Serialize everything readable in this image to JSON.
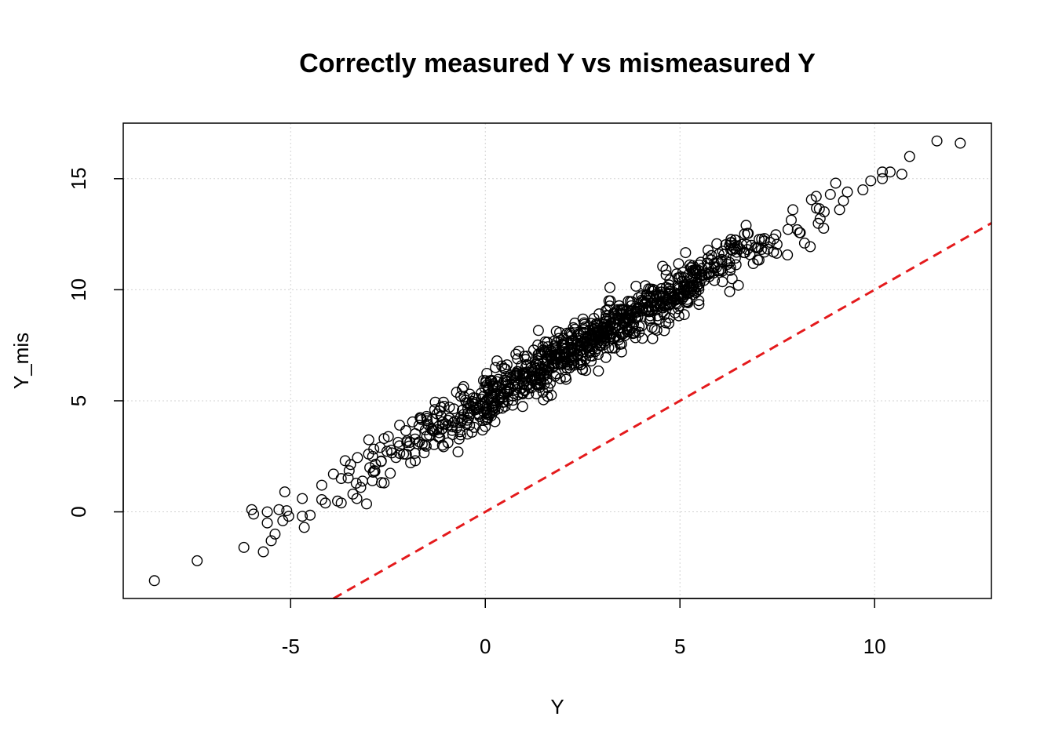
{
  "chart_data": {
    "type": "scatter",
    "title": "Correctly measured Y vs mismeasured Y",
    "xlabel": "Y",
    "ylabel": "Y_mis",
    "xlim": [
      -9.3,
      13.0
    ],
    "ylim": [
      -3.9,
      17.5
    ],
    "xticks": [
      -5,
      0,
      5,
      10
    ],
    "yticks": [
      0,
      5,
      10,
      15
    ],
    "xtick_labels": [
      "-5",
      "0",
      "5",
      "10"
    ],
    "ytick_labels": [
      "0",
      "5",
      "10",
      "15"
    ],
    "grid": true,
    "grid_color": "#d3d3d3",
    "point_color": "#000000",
    "marker": "open-circle",
    "reference_line": {
      "type": "identity",
      "slope": 1,
      "intercept": 0,
      "color": "#e41a1c",
      "style": "dashed"
    },
    "point_count_estimate": 1000,
    "trend": {
      "slope": 1.0,
      "intercept": 5.0,
      "residual_sd": 0.55
    },
    "points": [
      {
        "x": -8.5,
        "y": -3.1
      },
      {
        "x": -7.4,
        "y": -2.2
      },
      {
        "x": -6.2,
        "y": -1.6
      },
      {
        "x": -6.0,
        "y": 0.1
      },
      {
        "x": -5.95,
        "y": -0.1
      },
      {
        "x": -5.7,
        "y": -1.8
      },
      {
        "x": -5.5,
        "y": -1.3
      },
      {
        "x": -5.6,
        "y": 0.0
      },
      {
        "x": -5.6,
        "y": -0.5
      },
      {
        "x": -5.4,
        "y": -1.0
      },
      {
        "x": -5.3,
        "y": 0.1
      },
      {
        "x": -5.2,
        "y": -0.4
      },
      {
        "x": -5.15,
        "y": 0.9
      },
      {
        "x": -5.1,
        "y": 0.05
      },
      {
        "x": -5.05,
        "y": -0.2
      },
      {
        "x": -4.7,
        "y": 0.6
      },
      {
        "x": -4.7,
        "y": -0.2
      },
      {
        "x": -4.65,
        "y": -0.7
      },
      {
        "x": -4.5,
        "y": -0.15
      },
      {
        "x": -4.2,
        "y": 0.55
      },
      {
        "x": -4.2,
        "y": 1.2
      },
      {
        "x": -3.9,
        "y": 1.7
      },
      {
        "x": -3.7,
        "y": 0.4
      },
      {
        "x": -3.7,
        "y": 1.5
      },
      {
        "x": -3.6,
        "y": 2.3
      },
      {
        "x": -3.4,
        "y": 0.8
      },
      {
        "x": -3.3,
        "y": 0.6
      },
      {
        "x": -3.2,
        "y": 1.1
      },
      {
        "x": -3.0,
        "y": 2.6
      },
      {
        "x": -2.9,
        "y": 1.4
      },
      {
        "x": -2.7,
        "y": 2.9
      },
      {
        "x": -2.6,
        "y": 3.3
      },
      {
        "x": -2.6,
        "y": 1.3
      },
      {
        "x": -2.2,
        "y": 3.9
      },
      {
        "x": -2.1,
        "y": 2.6
      },
      {
        "x": -1.8,
        "y": 2.3
      },
      {
        "x": -1.5,
        "y": 4.2
      },
      {
        "x": -1.3,
        "y": 4.6
      },
      {
        "x": -1.1,
        "y": 3.0
      },
      {
        "x": -0.7,
        "y": 2.7
      },
      {
        "x": -0.4,
        "y": 5.3
      },
      {
        "x": 0.3,
        "y": 6.8
      },
      {
        "x": 0.7,
        "y": 4.8
      },
      {
        "x": 1.0,
        "y": 7.0
      },
      {
        "x": 1.6,
        "y": 5.2
      },
      {
        "x": 2.3,
        "y": 8.5
      },
      {
        "x": 2.5,
        "y": 6.4
      },
      {
        "x": 3.2,
        "y": 10.1
      },
      {
        "x": 3.5,
        "y": 7.2
      },
      {
        "x": 4.3,
        "y": 7.8
      },
      {
        "x": 5.3,
        "y": 11.0
      },
      {
        "x": 6.3,
        "y": 11.0
      },
      {
        "x": 6.5,
        "y": 10.2
      },
      {
        "x": 6.7,
        "y": 12.9
      },
      {
        "x": 7.4,
        "y": 11.7
      },
      {
        "x": 7.9,
        "y": 13.6
      },
      {
        "x": 8.2,
        "y": 12.1
      },
      {
        "x": 8.5,
        "y": 14.2
      },
      {
        "x": 8.6,
        "y": 13.2
      },
      {
        "x": 9.0,
        "y": 14.8
      },
      {
        "x": 9.1,
        "y": 13.6
      },
      {
        "x": 9.2,
        "y": 14.0
      },
      {
        "x": 9.3,
        "y": 14.4
      },
      {
        "x": 9.7,
        "y": 14.5
      },
      {
        "x": 9.9,
        "y": 14.9
      },
      {
        "x": 10.2,
        "y": 15.0
      },
      {
        "x": 10.2,
        "y": 15.3
      },
      {
        "x": 10.4,
        "y": 15.3
      },
      {
        "x": 10.7,
        "y": 15.2
      },
      {
        "x": 10.9,
        "y": 16.0
      },
      {
        "x": 11.6,
        "y": 16.7
      },
      {
        "x": 12.2,
        "y": 16.6
      }
    ]
  }
}
